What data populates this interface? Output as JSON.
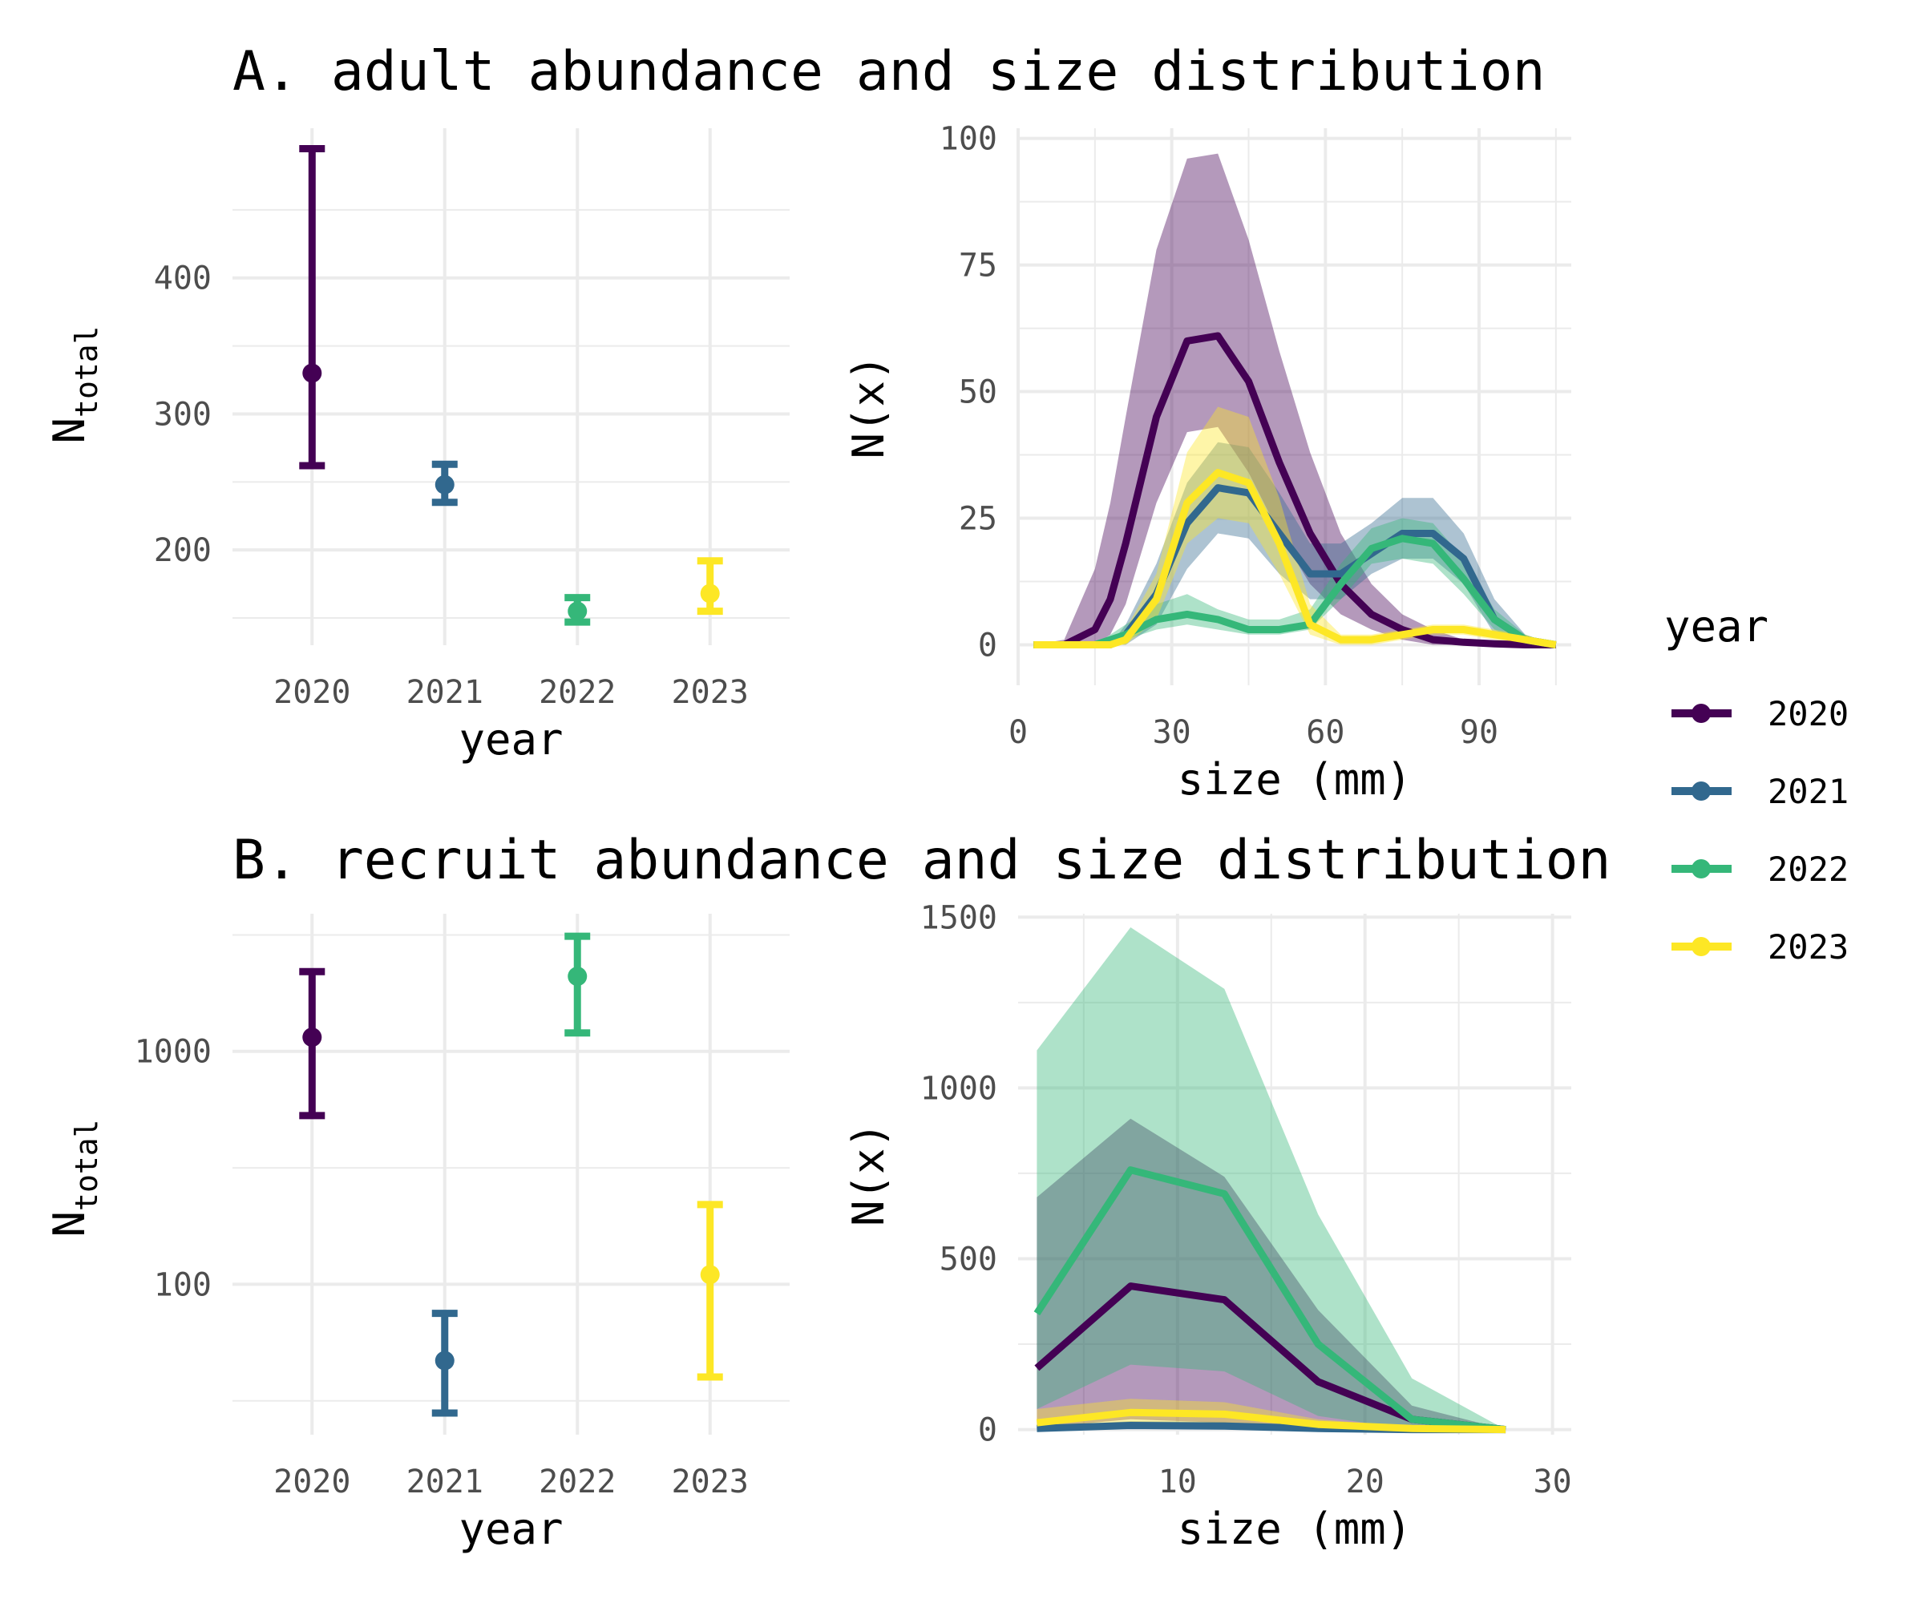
{
  "colors": {
    "2020": "#440154",
    "2021": "#31688e",
    "2022": "#35b779",
    "2023": "#fde725"
  },
  "legend": {
    "title": "year",
    "entries": [
      "2020",
      "2021",
      "2022",
      "2023"
    ],
    "placement": "right"
  },
  "chart_data": [
    {
      "id": "adult-abundance",
      "type": "errorbar",
      "title": "A. adult abundance and size distribution",
      "xlabel": "year",
      "ylabel_main": "N",
      "ylabel_sub": "total",
      "categories": [
        "2020",
        "2021",
        "2022",
        "2023"
      ],
      "estimate": [
        330,
        248,
        155,
        168
      ],
      "lower": [
        262,
        235,
        147,
        155
      ],
      "upper": [
        495,
        263,
        165,
        192
      ],
      "ylim": [
        130,
        510
      ],
      "yticks": [
        200,
        300,
        400
      ],
      "yticks_minor": [
        150,
        250,
        350,
        450
      ],
      "grid": true
    },
    {
      "id": "adult-size",
      "type": "area",
      "xlabel": "size (mm)",
      "ylabel": "N(x)",
      "xlim": [
        0,
        108
      ],
      "ylim": [
        -8,
        102
      ],
      "xticks": [
        0,
        30,
        60,
        90
      ],
      "xticks_minor": [
        15,
        45,
        75,
        105
      ],
      "yticks": [
        0,
        25,
        50,
        75,
        100
      ],
      "yticks_minor": [
        12.5,
        37.5,
        62.5,
        87.5
      ],
      "x": [
        3,
        9,
        15,
        18,
        21,
        27,
        33,
        39,
        45,
        51,
        57,
        63,
        69,
        75,
        81,
        87,
        93,
        99,
        105
      ],
      "series": [
        {
          "name": "2020",
          "y": [
            0,
            0,
            3,
            9,
            20,
            45,
            60,
            61,
            52,
            36,
            22,
            12,
            6,
            3,
            1,
            0.5,
            0.2,
            0,
            0
          ],
          "lower": [
            0,
            0,
            0,
            2,
            8,
            28,
            42,
            43,
            34,
            22,
            12,
            6,
            3,
            1,
            0,
            0,
            0,
            0,
            0
          ],
          "upper": [
            0,
            1,
            15,
            28,
            45,
            78,
            96,
            97,
            80,
            58,
            38,
            22,
            12,
            6,
            3,
            1,
            0.5,
            0,
            0
          ]
        },
        {
          "name": "2021",
          "y": [
            0,
            0,
            0,
            0,
            2,
            10,
            24,
            31,
            30,
            22,
            14,
            14,
            18,
            22,
            22,
            17,
            5,
            1,
            0
          ],
          "lower": [
            0,
            0,
            0,
            0,
            0,
            4,
            15,
            22,
            21,
            14,
            9,
            9,
            14,
            17,
            17,
            12,
            2,
            0,
            0
          ],
          "upper": [
            0,
            0,
            0,
            0,
            4,
            16,
            32,
            40,
            39,
            30,
            20,
            20,
            24,
            29,
            29,
            22,
            9,
            2,
            0
          ]
        },
        {
          "name": "2022",
          "y": [
            0,
            0,
            0,
            1,
            2,
            5,
            6,
            5,
            3,
            3,
            4,
            12,
            19,
            21,
            20,
            13,
            5,
            1,
            0
          ],
          "lower": [
            0,
            0,
            0,
            0,
            1,
            3,
            4,
            3,
            2,
            2,
            3,
            9,
            16,
            17,
            16,
            10,
            3,
            0,
            0
          ],
          "upper": [
            0,
            0,
            0,
            2,
            4,
            8,
            10,
            7,
            5,
            5,
            7,
            16,
            23,
            25,
            24,
            17,
            7,
            2,
            0
          ]
        },
        {
          "name": "2023",
          "y": [
            0,
            0,
            0,
            0,
            1,
            9,
            28,
            34,
            32,
            20,
            4,
            1,
            1,
            2,
            3,
            3,
            2,
            1,
            0
          ],
          "lower": [
            0,
            0,
            0,
            0,
            0,
            5,
            20,
            25,
            24,
            14,
            2,
            0,
            0,
            1,
            2,
            2,
            1,
            0,
            0
          ],
          "upper": [
            0,
            0,
            0,
            1,
            3,
            14,
            38,
            47,
            45,
            29,
            8,
            2,
            2,
            3,
            4,
            4,
            3,
            2,
            0
          ]
        }
      ],
      "grid": true
    },
    {
      "id": "recruit-abundance",
      "type": "errorbar",
      "title": "B. recruit abundance and size distribution",
      "xlabel": "year",
      "ylabel_main": "N",
      "ylabel_sub": "total",
      "yscale": "log10",
      "categories": [
        "2020",
        "2021",
        "2022",
        "2023"
      ],
      "estimate": [
        1150,
        47,
        2100,
        110
      ],
      "lower": [
        530,
        28,
        1200,
        40
      ],
      "upper": [
        2200,
        75,
        3120,
        220
      ],
      "ylim": [
        22.6,
        3900
      ],
      "yticks": [
        100,
        1000
      ],
      "yticks_minor": [
        31.6,
        316,
        3160
      ],
      "grid": true
    },
    {
      "id": "recruit-size",
      "type": "area",
      "xlabel": "size (mm)",
      "ylabel": "N(x)",
      "xlim": [
        1.5,
        31
      ],
      "ylim": [
        -15,
        1510
      ],
      "xticks": [
        10,
        20,
        30
      ],
      "xticks_minor": [
        5,
        15,
        25
      ],
      "yticks": [
        0,
        500,
        1000,
        1500
      ],
      "yticks_minor": [
        250,
        750,
        1250
      ],
      "x": [
        2.5,
        7.5,
        12.5,
        17.5,
        22.5,
        27.5
      ],
      "series": [
        {
          "name": "2020",
          "y": [
            180,
            420,
            380,
            140,
            30,
            0
          ],
          "lower": [
            5,
            30,
            20,
            5,
            0,
            0
          ],
          "upper": [
            680,
            910,
            740,
            350,
            70,
            0
          ]
        },
        {
          "name": "2021",
          "y": [
            3,
            12,
            10,
            3,
            0,
            0
          ],
          "lower": [
            0,
            2,
            2,
            0,
            0,
            0
          ],
          "upper": [
            8,
            25,
            22,
            8,
            1,
            0
          ]
        },
        {
          "name": "2022",
          "y": [
            340,
            760,
            690,
            250,
            30,
            0
          ],
          "lower": [
            60,
            190,
            170,
            40,
            0,
            0
          ],
          "upper": [
            1110,
            1470,
            1290,
            630,
            150,
            0
          ]
        },
        {
          "name": "2023",
          "y": [
            20,
            50,
            45,
            15,
            3,
            0
          ],
          "lower": [
            5,
            15,
            12,
            3,
            0,
            0
          ],
          "upper": [
            60,
            90,
            80,
            30,
            8,
            0
          ]
        }
      ],
      "grid": true
    }
  ]
}
